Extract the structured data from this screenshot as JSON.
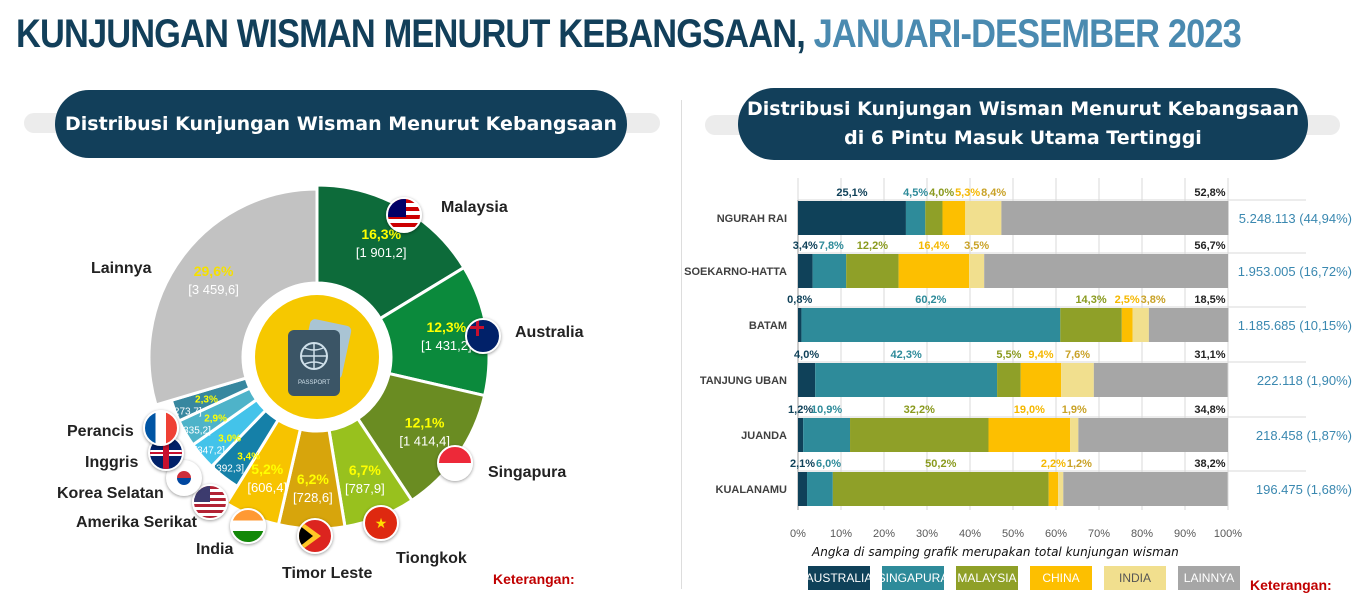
{
  "title": {
    "main": "KUNJUNGAN WISMAN MENURUT KEBANGSAAN,",
    "sub": " JANUARI-DESEMBER 2023"
  },
  "left_panel": {
    "heading": "Distribusi Kunjungan Wisman Menurut Kebangsaan",
    "center_icon": "passport-icon",
    "center_icon_text": "PASSPORT",
    "footnote": "Keterangan:"
  },
  "right_panel": {
    "heading_line1": "Distribusi Kunjungan Wisman Menurut Kebangsaan",
    "heading_line2": "di 6 Pintu Masuk Utama Tertinggi",
    "note": "Angka di samping grafik merupakan total kunjungan wisman",
    "footnote": "Keterangan:"
  },
  "chart_data": [
    {
      "type": "pie",
      "variant": "donut",
      "slices": [
        {
          "label": "Malaysia",
          "percent": "16,3%",
          "value": "[1 901,2]",
          "share": 16.3,
          "color": "#0d6b3a",
          "flag": "malaysia-flag"
        },
        {
          "label": "Australia",
          "percent": "12,3%",
          "value": "[1 431,2]",
          "share": 12.3,
          "color": "#0b8a3c",
          "flag": "australia-flag"
        },
        {
          "label": "Singapura",
          "percent": "12,1%",
          "value": "[1 414,4]",
          "share": 12.1,
          "color": "#6a8c22",
          "flag": "singapore-flag"
        },
        {
          "label": "Tiongkok",
          "percent": "6,7%",
          "value": "[787,9]",
          "share": 6.7,
          "color": "#98c11e",
          "flag": "china-flag"
        },
        {
          "label": "Timor Leste",
          "percent": "6,2%",
          "value": "[728,6]",
          "share": 6.2,
          "color": "#d7a50c",
          "flag": "timor-leste-flag"
        },
        {
          "label": "India",
          "percent": "5,2%",
          "value": "[606,4]",
          "share": 5.2,
          "color": "#f7c300",
          "flag": "india-flag"
        },
        {
          "label": "Amerika Serikat",
          "percent": "3,4%",
          "value": "[392,3]",
          "share": 3.4,
          "color": "#1580a8",
          "flag": "usa-flag"
        },
        {
          "label": "Korea Selatan",
          "percent": "3,0%",
          "value": "[347,2]",
          "share": 3.0,
          "color": "#43c3ea",
          "flag": "south-korea-flag"
        },
        {
          "label": "Inggris",
          "percent": "2,9%",
          "value": "[335,2]",
          "share": 2.9,
          "color": "#4eb3c9",
          "flag": "uk-flag"
        },
        {
          "label": "Perancis",
          "percent": "2,3%",
          "value": "[273,7]",
          "share": 2.3,
          "color": "#37879f",
          "flag": "france-flag"
        },
        {
          "label": "Lainnya",
          "percent": "29,6%",
          "value": "[3 459,6]",
          "share": 29.6,
          "color": "#c2c2c2"
        }
      ]
    },
    {
      "type": "bar",
      "orientation": "horizontal",
      "stacked": true,
      "xlim": [
        0,
        100
      ],
      "grid": true,
      "x_ticks": [
        "0%",
        "10%",
        "20%",
        "30%",
        "40%",
        "50%",
        "60%",
        "70%",
        "80%",
        "90%",
        "100%"
      ],
      "categories": [
        "NGURAH RAI",
        "SOEKARNO-HATTA",
        "BATAM",
        "TANJUNG UBAN",
        "JUANDA",
        "KUALANAMU"
      ],
      "totals": [
        "5.248.113  (44,94%)",
        "1.953.005  (16,72%)",
        "1.185.685 (10,15%)",
        "222.118  (1,90%)",
        "218.458  (1,87%)",
        "196.475  (1,68%)"
      ],
      "series": [
        {
          "name": "AUSTRALIA",
          "color": "#0f4159",
          "values": [
            25.1,
            3.4,
            0.8,
            4.0,
            1.2,
            2.1
          ],
          "labels": [
            "25,1%",
            "3,4%",
            "0,8%",
            "4,0%",
            "1,2%",
            "2,1%"
          ]
        },
        {
          "name": "SINGAPURA",
          "color": "#2e8b9a",
          "values": [
            4.5,
            7.8,
            60.2,
            42.3,
            10.9,
            6.0
          ],
          "labels": [
            "4,5%",
            "7,8%",
            "60,2%",
            "42,3%",
            "10,9%",
            "6,0%"
          ]
        },
        {
          "name": "MALAYSIA",
          "color": "#8fa028",
          "values": [
            4.0,
            12.2,
            14.3,
            5.5,
            32.2,
            50.2
          ],
          "labels": [
            "4,0%",
            "12,2%",
            "14,3%",
            "5,5%",
            "32,2%",
            "50,2%"
          ]
        },
        {
          "name": "CHINA",
          "color": "#fdbf00",
          "values": [
            5.3,
            16.4,
            2.5,
            9.4,
            19.0,
            2.2
          ],
          "labels": [
            "5,3%",
            "16,4%",
            "2,5%",
            "9,4%",
            "19,0%",
            "2,2%"
          ]
        },
        {
          "name": "INDIA",
          "color": "#f1df8e",
          "values": [
            8.4,
            3.5,
            3.8,
            7.6,
            1.9,
            1.2
          ],
          "labels": [
            "8,4%",
            "3,5%",
            "3,8%",
            "7,6%",
            "1,9%",
            "1,2%"
          ]
        },
        {
          "name": "LAINNYA",
          "color": "#a6a6a6",
          "values": [
            52.8,
            56.7,
            18.5,
            31.1,
            34.8,
            38.2
          ],
          "labels": [
            "52,8%",
            "56,7%",
            "18,5%",
            "31,1%",
            "34,8%",
            "38,2%"
          ]
        }
      ],
      "label_colors": [
        "#0f4159",
        "#2e8b9a",
        "#8a9a1e",
        "#f5b800",
        "#c9a227",
        "#222222"
      ]
    }
  ]
}
